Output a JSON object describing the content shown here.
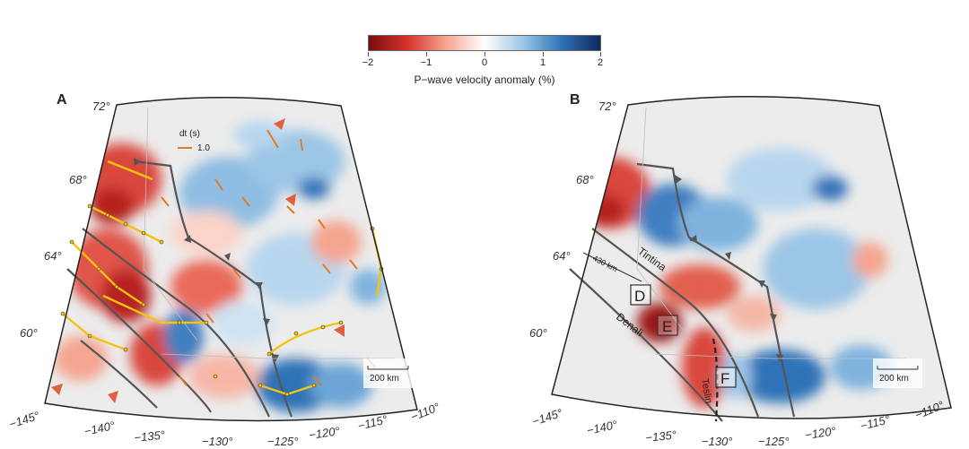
{
  "colorbar": {
    "title": "P−wave velocity anomaly (%)",
    "ticks": [
      "−2",
      "−1",
      "0",
      "1",
      "2"
    ],
    "colors": [
      "#7a0b0b",
      "#d7332b",
      "#f4a58f",
      "#ffffff",
      "#9cc6e6",
      "#2f72b7",
      "#11285e"
    ]
  },
  "panel_a": {
    "letter": "A",
    "lat_labels": [
      "72°",
      "68°",
      "64°",
      "60°"
    ],
    "lon_labels": [
      "−145°",
      "−140°",
      "−135°",
      "−130°",
      "−125°",
      "−120°",
      "−115°",
      "−110°"
    ],
    "legend_title": "dt (s)",
    "legend_value": "1.0",
    "scale_label": "200 km"
  },
  "panel_b": {
    "letter": "B",
    "lat_labels": [
      "72°",
      "68°",
      "64°",
      "60°"
    ],
    "lon_labels": [
      "−145°",
      "−140°",
      "−135°",
      "−130°",
      "−125°",
      "−120°",
      "−115°",
      "−110°"
    ],
    "fault_labels": {
      "tintina": "Tintina",
      "denali": "Denali",
      "teslin": "Teslin"
    },
    "distance_label": "430 km",
    "box_labels": [
      "D",
      "E",
      "F"
    ],
    "scale_label": "200 km"
  }
}
